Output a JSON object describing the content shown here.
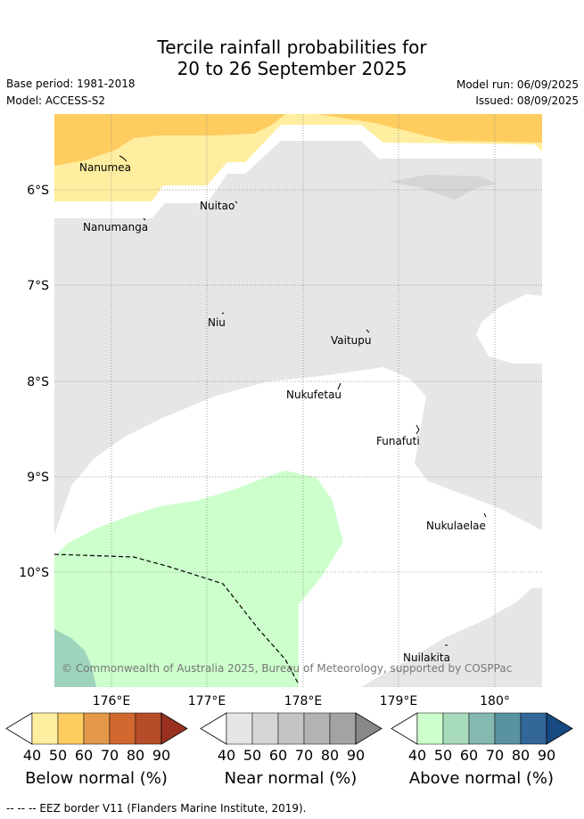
{
  "title_line1": "Tercile rainfall probabilities for",
  "title_line2": "20 to 26 September 2025",
  "base_period": "Base period: 1981-2018",
  "model": "Model: ACCESS-S2",
  "model_run": "Model run: 06/09/2025",
  "issued": "Issued: 08/09/2025",
  "lat_labels": [
    "6°S",
    "7°S",
    "8°S",
    "9°S",
    "10°S"
  ],
  "lon_labels": [
    "176°E",
    "177°E",
    "178°E",
    "179°E",
    "180°"
  ],
  "places": [
    "Nanumea",
    "Nanumanga",
    "Nuitao",
    "Niu",
    "Vaitupu",
    "Nukufetau",
    "Funafuti",
    "Nukulaelae",
    "Nuilakita"
  ],
  "copyright": "© Commonwealth of Australia 2025, Bureau of Meteorology, supported by COSPPac",
  "colorbars": [
    {
      "title": "Below normal (%)",
      "colors": [
        "#ffeea0",
        "#ffcc60",
        "#e3984a",
        "#d06830",
        "#b64d2a",
        "#9a3120"
      ]
    },
    {
      "title": "Near normal (%)",
      "colors": [
        "#e6e6e6",
        "#d5d5d5",
        "#c4c4c4",
        "#b3b3b3",
        "#a3a3a3",
        "#888888"
      ]
    },
    {
      "title": "Above normal (%)",
      "colors": [
        "#ccffcc",
        "#a8dbbc",
        "#84b8b0",
        "#5a93a0",
        "#336699",
        "#174a80"
      ]
    }
  ],
  "ticks": [
    "40",
    "50",
    "60",
    "70",
    "80",
    "90"
  ],
  "footer": "--  --  -- EEZ border V11 (Flanders Marine Institute, 2019).",
  "colors": {
    "near": "#e6e6e6",
    "below40": "#ffeea0",
    "below50": "#ffcc60",
    "above40": "#ccffcc",
    "above50": "#9ed3bc"
  }
}
